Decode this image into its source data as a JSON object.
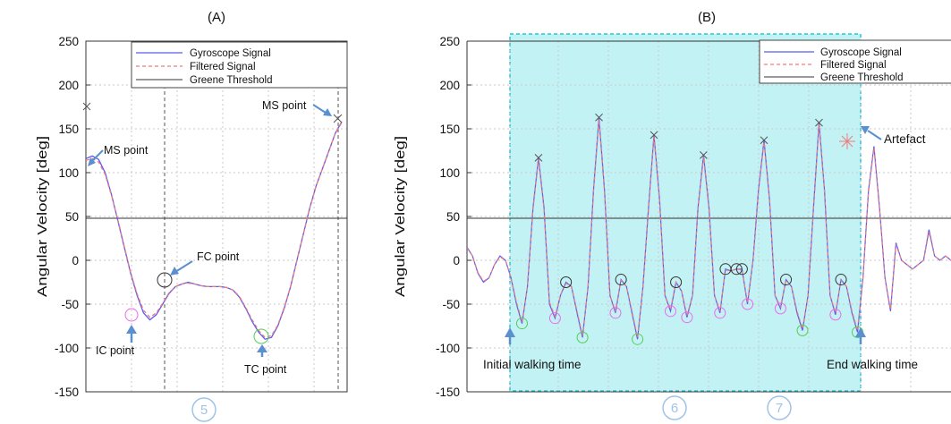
{
  "chart_data": [
    {
      "type": "line",
      "panel_label": "(A)",
      "ylabel": "Angular Velocity [deg]",
      "ylim": [
        -150,
        250
      ],
      "yticks": [
        "250",
        "200",
        "150",
        "100",
        "50",
        "0",
        "-50",
        "-100",
        "-150"
      ],
      "legend": [
        "Gyroscope Signal",
        "Filtered Signal",
        "Greene Threshold"
      ],
      "legend_position": "top-right",
      "threshold": 48,
      "series": [
        {
          "name": "Gyroscope Signal",
          "color": "#5b5bf0",
          "style": "solid",
          "y": [
            116,
            119,
            115,
            100,
            75,
            45,
            15,
            -15,
            -40,
            -60,
            -68,
            -62,
            -50,
            -38,
            -30,
            -27,
            -25,
            -27,
            -29,
            -30,
            -30,
            -30,
            -31,
            -34,
            -42,
            -55,
            -70,
            -82,
            -90,
            -88,
            -75,
            -55,
            -30,
            0,
            30,
            60,
            85,
            105,
            125,
            145,
            158
          ]
        },
        {
          "name": "Filtered Signal",
          "color": "#f07a7a",
          "style": "dashed",
          "y": [
            114,
            116,
            112,
            98,
            74,
            46,
            16,
            -14,
            -38,
            -57,
            -65,
            -60,
            -49,
            -37,
            -30,
            -27,
            -26,
            -27,
            -29,
            -30,
            -30,
            -30,
            -31,
            -34,
            -41,
            -54,
            -68,
            -80,
            -88,
            -86,
            -74,
            -54,
            -30,
            0,
            30,
            60,
            85,
            105,
            125,
            145,
            157
          ]
        }
      ],
      "annotations": [
        "MS point",
        "MS point",
        "FC point",
        "IC point",
        "TC point"
      ],
      "footer_number": "5"
    },
    {
      "type": "line",
      "panel_label": "(B)",
      "ylabel": "Angular Velocity [deg]",
      "ylim": [
        -150,
        250
      ],
      "yticks": [
        "250",
        "200",
        "150",
        "100",
        "50",
        "0",
        "-50",
        "-100",
        "-150"
      ],
      "legend": [
        "Gyroscope Signal",
        "Filtered Signal",
        "Greene Threshold"
      ],
      "legend_position": "top-right",
      "threshold": 48,
      "highlight_window": "walking period",
      "series": [
        {
          "name": "Gyroscope Signal",
          "color": "#5b5bf0",
          "style": "solid",
          "y": [
            15,
            5,
            -15,
            -25,
            -20,
            -5,
            5,
            0,
            -20,
            -50,
            -72,
            -30,
            60,
            117,
            60,
            -50,
            -66,
            -40,
            -25,
            -30,
            -60,
            -88,
            -30,
            80,
            163,
            80,
            -40,
            -60,
            -22,
            -30,
            -60,
            -90,
            -30,
            60,
            143,
            70,
            -40,
            -58,
            -25,
            -35,
            -65,
            -40,
            60,
            120,
            60,
            -40,
            -60,
            -10,
            -12,
            -10,
            -10,
            -50,
            0,
            80,
            137,
            70,
            -40,
            -55,
            -22,
            -30,
            -60,
            -80,
            -40,
            60,
            157,
            80,
            -40,
            -62,
            -22,
            -30,
            -60,
            -82,
            -20,
            80,
            130,
            60,
            -20,
            -58,
            20,
            0,
            -5,
            -10,
            -5,
            0,
            35,
            5,
            0,
            5,
            0
          ]
        },
        {
          "name": "Filtered Signal",
          "color": "#f07a7a",
          "style": "dashed",
          "y": [
            14,
            5,
            -14,
            -24,
            -20,
            -5,
            4,
            0,
            -20,
            -48,
            -70,
            -30,
            58,
            115,
            58,
            -48,
            -64,
            -40,
            -26,
            -30,
            -58,
            -86,
            -30,
            78,
            160,
            78,
            -40,
            -58,
            -23,
            -30,
            -58,
            -88,
            -30,
            58,
            141,
            68,
            -40,
            -56,
            -25,
            -35,
            -63,
            -40,
            58,
            118,
            58,
            -40,
            -58,
            -11,
            -12,
            -10,
            -11,
            -48,
            0,
            78,
            135,
            68,
            -40,
            -53,
            -23,
            -30,
            -58,
            -78,
            -40,
            58,
            155,
            78,
            -40,
            -60,
            -23,
            -30,
            -58,
            -80,
            -20,
            78,
            128,
            58,
            -20,
            -56,
            18,
            0,
            -5,
            -10,
            -5,
            0,
            32,
            5,
            0,
            5,
            0
          ]
        }
      ],
      "annotations": [
        "Artefact",
        "Initial walking time",
        "End walking time"
      ],
      "footer_numbers": [
        "6",
        "7"
      ]
    }
  ]
}
